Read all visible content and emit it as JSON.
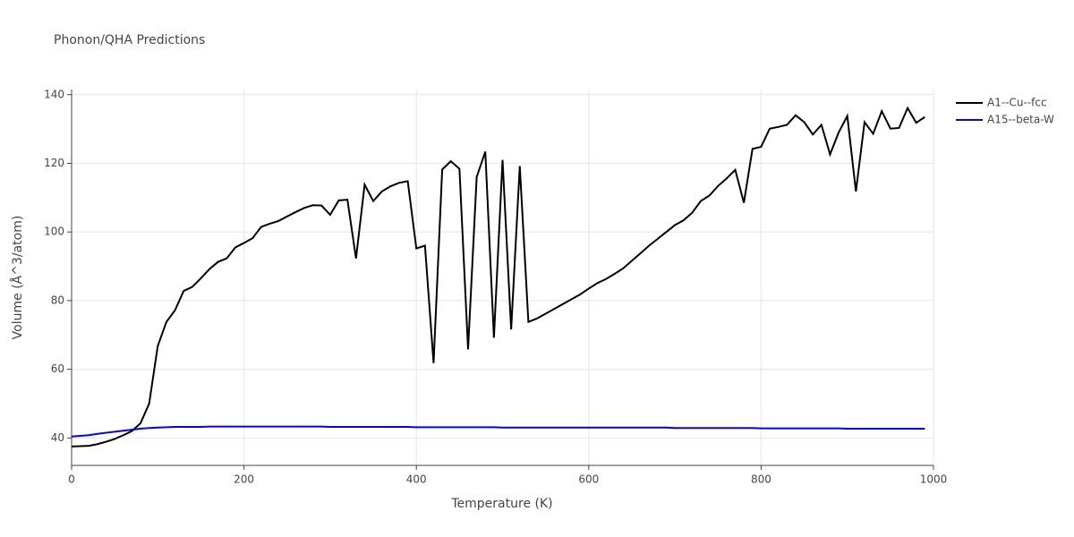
{
  "chart_data": {
    "type": "line",
    "title": "Phonon/QHA Predictions",
    "x_label": "Temperature (K)",
    "y_label": "Volume (Å^3/atom)",
    "x": [
      0,
      10,
      20,
      30,
      40,
      50,
      60,
      70,
      80,
      90,
      100,
      110,
      120,
      130,
      140,
      150,
      160,
      170,
      180,
      190,
      200,
      210,
      220,
      230,
      240,
      250,
      260,
      270,
      280,
      290,
      300,
      310,
      320,
      330,
      340,
      350,
      360,
      370,
      380,
      390,
      400,
      410,
      420,
      430,
      440,
      450,
      460,
      470,
      480,
      490,
      500,
      510,
      520,
      530,
      540,
      550,
      560,
      570,
      580,
      590,
      600,
      610,
      620,
      630,
      640,
      650,
      660,
      670,
      680,
      690,
      700,
      710,
      720,
      730,
      740,
      750,
      760,
      770,
      780,
      790,
      800,
      810,
      820,
      830,
      840,
      850,
      860,
      870,
      880,
      890,
      900,
      910,
      920,
      930,
      940,
      950,
      960,
      970,
      980,
      990
    ],
    "series": [
      {
        "name": "A1--Cu--fcc",
        "color": "#000000",
        "values": [
          37.5,
          37.6,
          37.7,
          38.2,
          38.9,
          39.7,
          40.8,
          42.0,
          44.3,
          50,
          66.8,
          73.8,
          77.2,
          82.8,
          84.0,
          86.5,
          89.2,
          91.3,
          92.3,
          95.5,
          96.8,
          98.2,
          101.5,
          102.4,
          103.2,
          104.5,
          105.8,
          107,
          107.8,
          107.7,
          105,
          109.2,
          109.4,
          92.3,
          113.8,
          109,
          111.8,
          113.3,
          114.3,
          114.8,
          95.2,
          96,
          61.8,
          118.2,
          120.6,
          118.4,
          65.8,
          116,
          123.4,
          69.2,
          121,
          71.6,
          119.2,
          73.8,
          74.8,
          76.2,
          77.6,
          79,
          80.4,
          81.8,
          83.5,
          85.1,
          86.3,
          87.8,
          89.4,
          91.6,
          93.8,
          96,
          98,
          100,
          102,
          103.4,
          105.6,
          109,
          110.6,
          113.4,
          115.6,
          118.1,
          108.5,
          124.2,
          124.8,
          130.1,
          130.6,
          131.2,
          134,
          132,
          128.4,
          131.2,
          122.6,
          129,
          133.8,
          111.8,
          132,
          128.6,
          135.2,
          130.1,
          130.3,
          136.1,
          131.8,
          133.5
        ]
      },
      {
        "name": "A15--beta-W",
        "color": "#0000ff",
        "values": [
          40.4,
          40.6,
          40.8,
          41.2,
          41.5,
          41.8,
          42.1,
          42.4,
          42.7,
          42.9,
          43.0,
          43.1,
          43.2,
          43.2,
          43.2,
          43.2,
          43.3,
          43.3,
          43.3,
          43.3,
          43.3,
          43.3,
          43.3,
          43.3,
          43.3,
          43.3,
          43.3,
          43.3,
          43.3,
          43.3,
          43.2,
          43.2,
          43.2,
          43.2,
          43.2,
          43.2,
          43.2,
          43.2,
          43.2,
          43.2,
          43.1,
          43.1,
          43.1,
          43.1,
          43.1,
          43.1,
          43.1,
          43.1,
          43.1,
          43.1,
          43.0,
          43.0,
          43.0,
          43.0,
          43.0,
          43.0,
          43.0,
          43.0,
          43.0,
          43.0,
          43.0,
          43.0,
          43.0,
          43.0,
          43.0,
          43.0,
          43.0,
          43.0,
          43.0,
          43.0,
          42.9,
          42.9,
          42.9,
          42.9,
          42.9,
          42.9,
          42.9,
          42.9,
          42.9,
          42.9,
          42.8,
          42.8,
          42.8,
          42.8,
          42.8,
          42.8,
          42.8,
          42.8,
          42.8,
          42.8,
          42.7,
          42.7,
          42.7,
          42.7,
          42.7,
          42.7,
          42.7,
          42.7,
          42.7,
          42.7
        ]
      }
    ],
    "xlim": [
      0,
      1000
    ],
    "xticks": [
      0,
      200,
      400,
      600,
      800,
      1000
    ],
    "ylim": [
      32,
      141.5
    ],
    "yticks": [
      40,
      60,
      80,
      100,
      120,
      140
    ],
    "grid": true,
    "legend": "right"
  }
}
